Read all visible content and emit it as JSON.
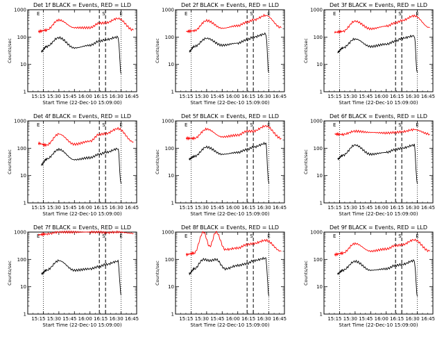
{
  "chart_data": [
    {
      "type": "line",
      "title": "Det 1f BLACK = Events, RED = LLD",
      "xlabel": "Start Time (22-Dec-10 15:09:00)",
      "ylabel": "Counts/sec",
      "y_scale": "log",
      "ylim": [
        1,
        1000
      ],
      "y_ticks": [
        "1",
        "10",
        "100",
        "1000"
      ],
      "x_ticks": [
        "15:15",
        "15:30",
        "15:45",
        "16:00",
        "16:15",
        "16:30",
        "16:45"
      ],
      "markers": [
        {
          "label": "E",
          "x": 15.17
        },
        {
          "label": "S",
          "x": 16.22
        },
        {
          "label": "E",
          "x": 16.5
        }
      ],
      "vlines_dashed": [
        16.15,
        16.25
      ],
      "vlines_dotted": [
        15.25,
        16.5
      ],
      "series": [
        {
          "color": "#ff0000",
          "x": [
            15.17,
            15.3,
            15.5,
            15.75,
            16.0,
            16.15,
            16.25,
            16.45,
            16.7
          ],
          "values": [
            160,
            180,
            420,
            220,
            220,
            320,
            330,
            480,
            180
          ]
        },
        {
          "color": "#000000",
          "x": [
            15.22,
            15.3,
            15.5,
            15.75,
            16.0,
            16.15,
            16.25,
            16.45,
            16.5
          ],
          "values": [
            30,
            45,
            95,
            40,
            50,
            70,
            80,
            100,
            5
          ]
        }
      ]
    },
    {
      "type": "line",
      "title": "Det 2f BLACK = Events, RED = LLD",
      "xlabel": "Start Time (22-Dec-10 15:09:00)",
      "ylabel": "Counts/sec",
      "y_scale": "log",
      "ylim": [
        1,
        1000
      ],
      "y_ticks": [
        "1",
        "10",
        "100",
        "1000"
      ],
      "x_ticks": [
        "15:15",
        "15:30",
        "15:45",
        "16:00",
        "16:15",
        "16:30",
        "16:45"
      ],
      "markers": [
        {
          "label": "E",
          "x": 15.17
        },
        {
          "label": "S",
          "x": 16.22
        },
        {
          "label": "E",
          "x": 16.5
        }
      ],
      "vlines_dashed": [
        16.15,
        16.25
      ],
      "vlines_dotted": [
        15.25,
        16.5
      ],
      "series": [
        {
          "color": "#ff0000",
          "x": [
            15.17,
            15.3,
            15.5,
            15.75,
            16.0,
            16.15,
            16.25,
            16.45,
            16.7
          ],
          "values": [
            160,
            170,
            400,
            210,
            260,
            350,
            420,
            620,
            220
          ]
        },
        {
          "color": "#000000",
          "x": [
            15.22,
            15.3,
            15.5,
            15.75,
            16.0,
            16.15,
            16.25,
            16.45,
            16.5
          ],
          "values": [
            30,
            45,
            90,
            50,
            60,
            80,
            100,
            130,
            5
          ]
        }
      ]
    },
    {
      "type": "line",
      "title": "Det 3f BLACK = Events, RED = LLD",
      "xlabel": "Start Time (22-Dec-10 15:09:00)",
      "ylabel": "Counts/sec",
      "y_scale": "log",
      "ylim": [
        1,
        1000
      ],
      "y_ticks": [
        "1",
        "10",
        "100",
        "1000"
      ],
      "x_ticks": [
        "15:15",
        "15:30",
        "15:45",
        "16:00",
        "16:15",
        "16:30",
        "16:45"
      ],
      "markers": [
        {
          "label": "E",
          "x": 15.17
        },
        {
          "label": "S",
          "x": 16.22
        },
        {
          "label": "E",
          "x": 16.5
        }
      ],
      "vlines_dashed": [
        16.15,
        16.25
      ],
      "vlines_dotted": [
        15.25,
        16.5
      ],
      "series": [
        {
          "color": "#ff0000",
          "x": [
            15.17,
            15.3,
            15.5,
            15.75,
            16.0,
            16.15,
            16.25,
            16.45,
            16.7
          ],
          "values": [
            150,
            160,
            380,
            200,
            250,
            330,
            400,
            600,
            220
          ]
        },
        {
          "color": "#000000",
          "x": [
            15.22,
            15.3,
            15.5,
            15.75,
            16.0,
            16.15,
            16.25,
            16.45,
            16.5
          ],
          "values": [
            28,
            40,
            85,
            45,
            55,
            70,
            90,
            110,
            5
          ]
        }
      ]
    },
    {
      "type": "line",
      "title": "Det 4f BLACK = Events, RED = LLD",
      "xlabel": "Start Time (22-Dec-10 15:09:00)",
      "ylabel": "Counts/sec",
      "y_scale": "log",
      "ylim": [
        1,
        1000
      ],
      "y_ticks": [
        "1",
        "10",
        "100",
        "1000"
      ],
      "x_ticks": [
        "15:15",
        "15:30",
        "15:45",
        "16:00",
        "16:15",
        "16:30",
        "16:45"
      ],
      "markers": [
        {
          "label": "E",
          "x": 15.17
        },
        {
          "label": "S",
          "x": 16.22
        },
        {
          "label": "E",
          "x": 16.5
        }
      ],
      "vlines_dashed": [
        16.15,
        16.25
      ],
      "vlines_dotted": [
        15.25,
        16.5
      ],
      "series": [
        {
          "color": "#ff0000",
          "x": [
            15.17,
            15.3,
            15.5,
            15.75,
            16.0,
            16.15,
            16.25,
            16.45,
            16.7
          ],
          "values": [
            150,
            130,
            330,
            140,
            180,
            320,
            340,
            520,
            170
          ]
        },
        {
          "color": "#000000",
          "x": [
            15.22,
            15.3,
            15.5,
            15.75,
            16.0,
            16.15,
            16.25,
            16.45,
            16.5
          ],
          "values": [
            25,
            40,
            90,
            38,
            45,
            60,
            70,
            95,
            5
          ]
        }
      ]
    },
    {
      "type": "line",
      "title": "Det 5f BLACK = Events, RED = LLD",
      "xlabel": "Start Time (22-Dec-10 15:09:00)",
      "ylabel": "Counts/sec",
      "y_scale": "log",
      "ylim": [
        1,
        1000
      ],
      "y_ticks": [
        "1",
        "10",
        "100",
        "1000"
      ],
      "x_ticks": [
        "15:15",
        "15:30",
        "15:45",
        "16:00",
        "16:15",
        "16:30",
        "16:45"
      ],
      "markers": [
        {
          "label": "E",
          "x": 15.17
        },
        {
          "label": "S",
          "x": 16.22
        },
        {
          "label": "E",
          "x": 16.5
        }
      ],
      "vlines_dashed": [
        16.15,
        16.25
      ],
      "vlines_dotted": [
        15.25,
        16.5
      ],
      "series": [
        {
          "color": "#ff0000",
          "x": [
            15.17,
            15.3,
            15.5,
            15.75,
            16.0,
            16.15,
            16.25,
            16.45,
            16.7
          ],
          "values": [
            230,
            230,
            500,
            260,
            300,
            420,
            420,
            650,
            230
          ]
        },
        {
          "color": "#000000",
          "x": [
            15.22,
            15.3,
            15.5,
            15.75,
            16.0,
            16.15,
            16.25,
            16.45,
            16.5
          ],
          "values": [
            40,
            50,
            110,
            60,
            70,
            90,
            110,
            150,
            5
          ]
        }
      ]
    },
    {
      "type": "line",
      "title": "Det 6f BLACK = Events, RED = LLD",
      "xlabel": "Start Time (22-Dec-10 15:09:00)",
      "ylabel": "Counts/sec",
      "y_scale": "log",
      "ylim": [
        1,
        1000
      ],
      "y_ticks": [
        "1",
        "10",
        "100",
        "1000"
      ],
      "x_ticks": [
        "15:15",
        "15:30",
        "15:45",
        "16:00",
        "16:15",
        "16:30",
        "16:45"
      ],
      "markers": [
        {
          "label": "E",
          "x": 15.17
        },
        {
          "label": "S",
          "x": 16.22
        },
        {
          "label": "E",
          "x": 16.5
        }
      ],
      "vlines_dashed": [
        16.15,
        16.25
      ],
      "vlines_dotted": [
        15.25,
        16.5
      ],
      "series": [
        {
          "color": "#ff0000",
          "x": [
            15.17,
            15.3,
            15.5,
            15.75,
            16.0,
            16.15,
            16.25,
            16.45,
            16.7
          ],
          "values": [
            330,
            320,
            420,
            380,
            360,
            380,
            400,
            480,
            330
          ]
        },
        {
          "color": "#000000",
          "x": [
            15.22,
            15.3,
            15.5,
            15.75,
            16.0,
            16.15,
            16.25,
            16.45,
            16.5
          ],
          "values": [
            40,
            55,
            130,
            60,
            70,
            90,
            100,
            130,
            5
          ]
        }
      ]
    },
    {
      "type": "line",
      "title": "Det 7f BLACK = Events, RED = LLD",
      "xlabel": "Start Time (22-Dec-10 15:09:00)",
      "ylabel": "Counts/sec",
      "y_scale": "log",
      "ylim": [
        1,
        1000
      ],
      "y_ticks": [
        "1",
        "10",
        "100",
        "1000"
      ],
      "x_ticks": [
        "15:15",
        "15:30",
        "15:45",
        "16:00",
        "16:15",
        "16:30",
        "16:45"
      ],
      "markers": [
        {
          "label": "E",
          "x": 15.17
        },
        {
          "label": "S",
          "x": 16.22
        },
        {
          "label": "E",
          "x": 16.5
        }
      ],
      "vlines_dashed": [
        16.15,
        16.25
      ],
      "vlines_dotted": [
        15.25,
        16.5
      ],
      "series": [
        {
          "color": "#ff0000",
          "x": [
            15.17,
            15.3,
            15.5,
            15.75,
            16.0,
            16.15,
            16.25,
            16.45,
            16.7
          ],
          "values": [
            800,
            850,
            1000,
            1000,
            1000,
            1000,
            950,
            1000,
            900
          ]
        },
        {
          "color": "#000000",
          "x": [
            15.22,
            15.3,
            15.5,
            15.75,
            16.0,
            16.15,
            16.25,
            16.45,
            16.5
          ],
          "values": [
            30,
            40,
            90,
            40,
            45,
            55,
            65,
            85,
            5
          ]
        }
      ]
    },
    {
      "type": "line",
      "title": "Det 8f BLACK = Events, RED = LLD",
      "xlabel": "Start Time (22-Dec-10 15:09:00)",
      "ylabel": "Counts/sec",
      "y_scale": "log",
      "ylim": [
        1,
        1000
      ],
      "y_ticks": [
        "1",
        "10",
        "100",
        "1000"
      ],
      "x_ticks": [
        "15:15",
        "15:30",
        "15:45",
        "16:00",
        "16:15",
        "16:30",
        "16:45"
      ],
      "markers": [
        {
          "label": "E",
          "x": 15.17
        },
        {
          "label": "S",
          "x": 16.22
        },
        {
          "label": "E",
          "x": 16.5
        }
      ],
      "vlines_dashed": [
        16.15,
        16.25
      ],
      "vlines_dotted": [
        15.25,
        16.5
      ],
      "series": [
        {
          "color": "#ff0000",
          "x": [
            15.17,
            15.3,
            15.45,
            15.55,
            15.65,
            15.8,
            16.0,
            16.15,
            16.25,
            16.45,
            16.7
          ],
          "values": [
            150,
            170,
            1000,
            300,
            1000,
            230,
            260,
            350,
            380,
            500,
            200
          ]
        },
        {
          "color": "#000000",
          "x": [
            15.22,
            15.3,
            15.45,
            15.55,
            15.65,
            15.8,
            16.0,
            16.15,
            16.25,
            16.45,
            16.5
          ],
          "values": [
            30,
            45,
            100,
            90,
            100,
            45,
            60,
            70,
            90,
            110,
            5
          ]
        }
      ]
    },
    {
      "type": "line",
      "title": "Det 9f BLACK = Events, RED = LLD",
      "xlabel": "Start Time (22-Dec-10 15:09:00)",
      "ylabel": "Counts/sec",
      "y_scale": "log",
      "ylim": [
        1,
        1000
      ],
      "y_ticks": [
        "1",
        "10",
        "100",
        "1000"
      ],
      "x_ticks": [
        "15:15",
        "15:30",
        "15:45",
        "16:00",
        "16:15",
        "16:30",
        "16:45"
      ],
      "markers": [
        {
          "label": "E",
          "x": 15.17
        },
        {
          "label": "S",
          "x": 16.22
        },
        {
          "label": "E",
          "x": 16.5
        }
      ],
      "vlines_dashed": [
        16.15,
        16.25
      ],
      "vlines_dotted": [
        15.25,
        16.5
      ],
      "series": [
        {
          "color": "#ff0000",
          "x": [
            15.17,
            15.3,
            15.5,
            15.75,
            16.0,
            16.15,
            16.25,
            16.45,
            16.7
          ],
          "values": [
            150,
            170,
            380,
            200,
            240,
            320,
            340,
            520,
            200
          ]
        },
        {
          "color": "#000000",
          "x": [
            15.22,
            15.3,
            15.5,
            15.75,
            16.0,
            16.15,
            16.25,
            16.45,
            16.5
          ],
          "values": [
            30,
            40,
            85,
            40,
            45,
            60,
            65,
            90,
            5
          ]
        }
      ]
    }
  ]
}
